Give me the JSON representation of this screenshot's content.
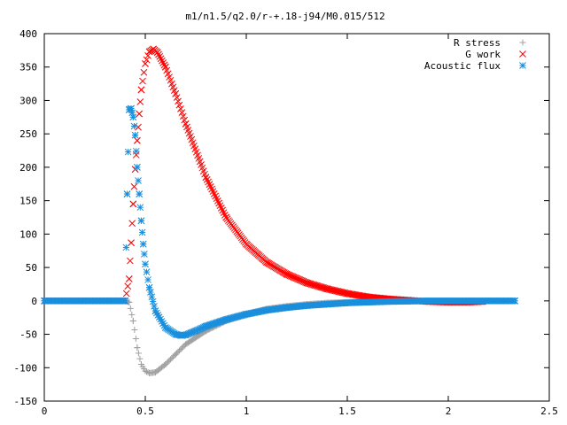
{
  "chart_data": {
    "type": "scatter",
    "title": "m1/n1.5/q2.0/r-+.18-j94/M0.015/512",
    "xlabel": "",
    "ylabel": "",
    "xlim": [
      0,
      2.5
    ],
    "ylim": [
      -150,
      400
    ],
    "xticks": [
      0,
      0.5,
      1,
      1.5,
      2,
      2.5
    ],
    "xtick_labels": [
      "0",
      "0.5",
      "1",
      "1.5",
      "2",
      "2.5"
    ],
    "yticks": [
      -150,
      -100,
      -50,
      0,
      50,
      100,
      150,
      200,
      250,
      300,
      350,
      400
    ],
    "ytick_labels": [
      "-150",
      "-100",
      "-50",
      "0",
      "50",
      "100",
      "150",
      "200",
      "250",
      "300",
      "350",
      "400"
    ],
    "grid": false,
    "legend_position": "top-right",
    "series": [
      {
        "name": "R stress",
        "marker": "plus",
        "color": "#a0a0a0",
        "x": [
          0.0,
          0.1,
          0.2,
          0.3,
          0.4,
          0.42,
          0.44,
          0.46,
          0.48,
          0.5,
          0.52,
          0.55,
          0.6,
          0.65,
          0.7,
          0.8,
          0.9,
          1.0,
          1.1,
          1.2,
          1.3,
          1.4,
          1.5,
          1.6,
          1.7,
          1.8,
          1.9,
          2.0,
          2.1,
          2.2,
          2.3
        ],
        "y": [
          0,
          0,
          0,
          0,
          0,
          -2,
          -30,
          -70,
          -95,
          -105,
          -108,
          -107,
          -95,
          -80,
          -65,
          -45,
          -30,
          -20,
          -12,
          -8,
          -5,
          -3,
          -2,
          -1,
          -0.5,
          -0.3,
          -0.1,
          0,
          0,
          0,
          0
        ]
      },
      {
        "name": "G work",
        "marker": "cross",
        "color": "#ff0000",
        "x": [
          0.0,
          0.1,
          0.2,
          0.3,
          0.4,
          0.42,
          0.43,
          0.44,
          0.45,
          0.46,
          0.47,
          0.48,
          0.5,
          0.52,
          0.54,
          0.56,
          0.6,
          0.65,
          0.7,
          0.8,
          0.9,
          1.0,
          1.1,
          1.2,
          1.3,
          1.4,
          1.5,
          1.6,
          1.7,
          1.8,
          1.9,
          2.0,
          2.1,
          2.17
        ],
        "y": [
          0,
          0,
          0,
          0,
          0,
          33,
          87,
          145,
          197,
          240,
          280,
          316,
          355,
          373,
          377,
          372,
          350,
          310,
          265,
          185,
          125,
          85,
          58,
          40,
          27,
          18,
          11,
          6,
          3,
          1,
          -1,
          -2,
          -2,
          -1
        ]
      },
      {
        "name": "Acoustic flux",
        "marker": "asterisk",
        "color": "#1a8fdc",
        "x": [
          0.0,
          0.1,
          0.2,
          0.3,
          0.4,
          0.41,
          0.42,
          0.43,
          0.44,
          0.45,
          0.46,
          0.47,
          0.48,
          0.49,
          0.5,
          0.52,
          0.55,
          0.6,
          0.65,
          0.68,
          0.7,
          0.75,
          0.8,
          0.9,
          1.0,
          1.1,
          1.2,
          1.3,
          1.4,
          1.5,
          1.6,
          1.7,
          1.8,
          1.9,
          2.0,
          2.1,
          2.2,
          2.33
        ],
        "y": [
          0,
          0,
          0,
          0,
          0,
          160,
          286,
          288,
          275,
          248,
          200,
          160,
          120,
          85,
          55,
          20,
          -15,
          -40,
          -50,
          -52,
          -51,
          -45,
          -38,
          -28,
          -20,
          -14,
          -10,
          -7,
          -5,
          -3,
          -2,
          -1,
          -0.5,
          0,
          0,
          0,
          0,
          0
        ]
      }
    ]
  }
}
